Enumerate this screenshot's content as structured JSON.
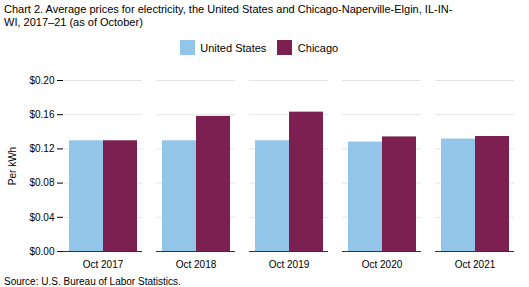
{
  "chart_data": {
    "type": "bar",
    "title": "Chart 2. Average prices for electricity, the United States and Chicago-Naperville-Elgin,  IL-IN-\nWI, 2017–21 (as of October)",
    "source": "Source: U.S. Bureau of Labor Statistics.",
    "ylabel": "Per kWh",
    "categories": [
      "Oct 2017",
      "Oct 2018",
      "Oct 2019",
      "Oct 2020",
      "Oct 2021"
    ],
    "series": [
      {
        "name": "United States",
        "color": "#92C5E8",
        "values": [
          0.1295,
          0.1295,
          0.1295,
          0.128,
          0.1315
        ]
      },
      {
        "name": "Chicago",
        "color": "#7B2051",
        "values": [
          0.1295,
          0.158,
          0.163,
          0.134,
          0.1345
        ]
      }
    ],
    "ylim": [
      0,
      0.2
    ],
    "yticks": [
      {
        "value": 0.0,
        "label": "$0.00"
      },
      {
        "value": 0.04,
        "label": "$0.04"
      },
      {
        "value": 0.08,
        "label": "$0.08"
      },
      {
        "value": 0.12,
        "label": "$0.12"
      },
      {
        "value": 0.16,
        "label": "$0.16"
      },
      {
        "value": 0.2,
        "label": "$0.20"
      }
    ],
    "grid": true,
    "legend": "top"
  }
}
